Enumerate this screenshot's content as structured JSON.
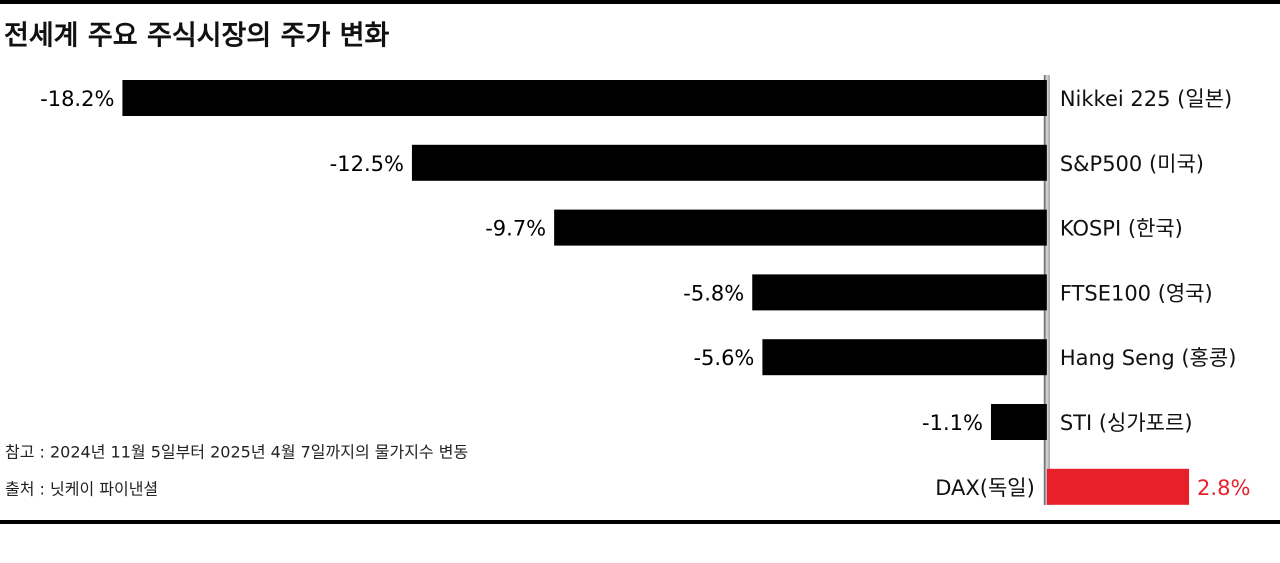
{
  "chart_data": {
    "type": "bar",
    "orientation": "horizontal",
    "title": "전세계 주요 주식시장의 주가 변화",
    "categories": [
      "Nikkei 225 (일본)",
      "S&P500 (미국)",
      "KOSPI (한국)",
      "FTSE100 (영국)",
      "Hang Seng (홍콩)",
      "STI (싱가포르)",
      "DAX(독일)"
    ],
    "values": [
      -18.2,
      -12.5,
      -9.7,
      -5.8,
      -5.6,
      -1.1,
      2.8
    ],
    "value_labels": [
      "-18.2%",
      "-12.5%",
      "-9.7%",
      "-5.8%",
      "-5.6%",
      "-1.1%",
      "2.8%"
    ],
    "colors": [
      "#000000",
      "#000000",
      "#000000",
      "#000000",
      "#000000",
      "#000000",
      "#e8202a"
    ],
    "xlim": [
      -20,
      4
    ],
    "notes": [
      "참고 : 2024년 11월 5일부터 2025년 4월 7일까지의 물가지수 변동",
      "출처 : 닛케이 파이낸셜"
    ]
  }
}
